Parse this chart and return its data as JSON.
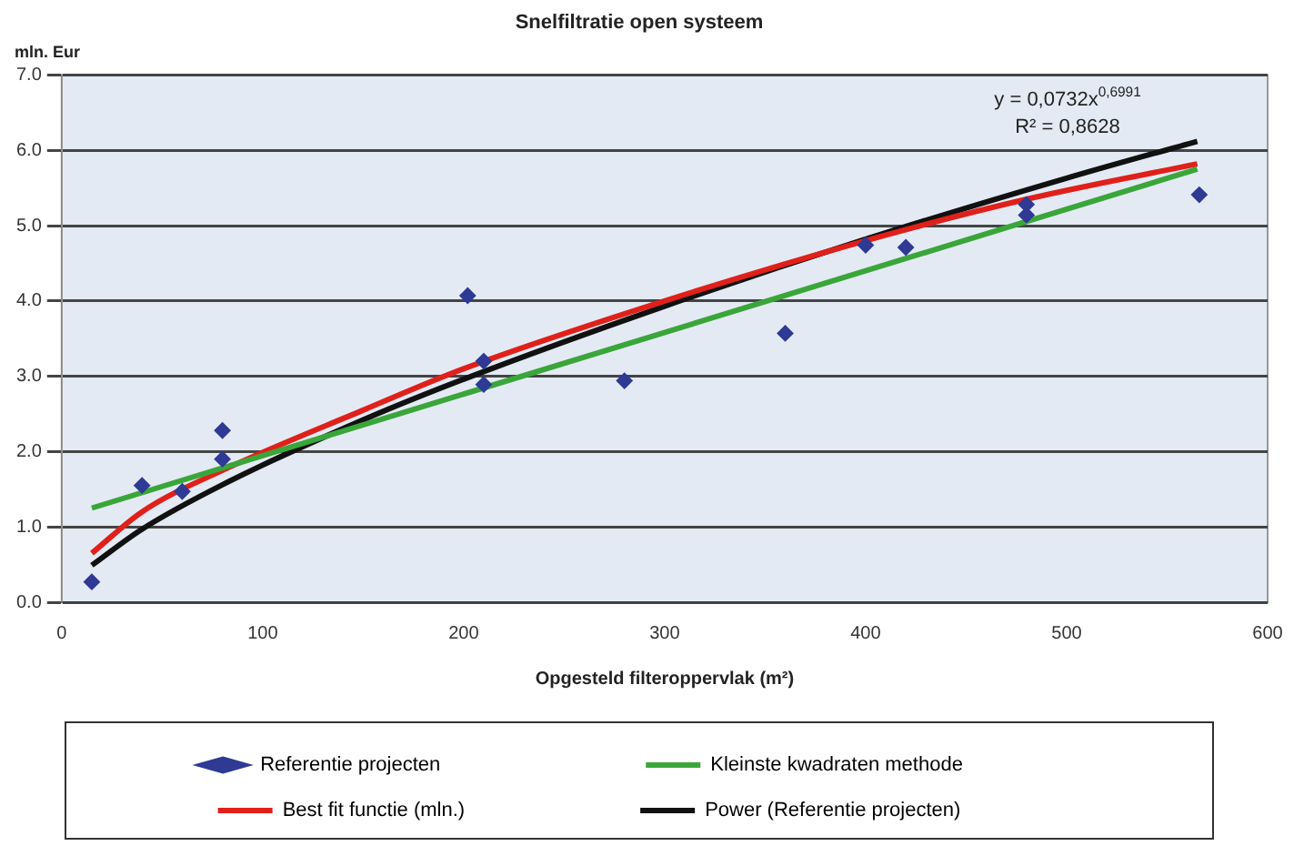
{
  "chart_data": {
    "type": "scatter",
    "title": "Snelfiltratie open systeem",
    "xlabel": "Opgesteld filteroppervlak (m²)",
    "ylabel": "mln. Eur",
    "xlim": [
      0,
      600
    ],
    "xticks": [
      0,
      100,
      200,
      300,
      400,
      500,
      600
    ],
    "ylim": [
      0,
      7
    ],
    "yticks": [
      {
        "value": 0,
        "label": "0.0"
      },
      {
        "value": 1,
        "label": "1.0"
      },
      {
        "value": 2,
        "label": "2.0"
      },
      {
        "value": 3,
        "label": "3.0"
      },
      {
        "value": 4,
        "label": "4.0"
      },
      {
        "value": 5,
        "label": "5.0"
      },
      {
        "value": 6,
        "label": "6.0"
      },
      {
        "value": 7,
        "label": "7.0"
      }
    ],
    "grid": "y",
    "legend": "bottom",
    "annotations": [
      "y = 0,0732x$^{0,6991}$",
      "R² = 0,8628"
    ],
    "series": [
      {
        "name": "Referentie projecten",
        "marker": "diamond",
        "color": "#2e3a94",
        "x": [
          15,
          40,
          60,
          80,
          80,
          202,
          210,
          210,
          280,
          360,
          400,
          420,
          480,
          480,
          566
        ],
        "values": [
          0.27,
          1.55,
          1.47,
          2.28,
          1.9,
          4.07,
          3.2,
          2.89,
          2.94,
          3.57,
          4.74,
          4.71,
          5.28,
          5.14,
          5.41
        ]
      },
      {
        "name": "Kleinste kwadraten methode",
        "type": "line",
        "marker": "none",
        "color": "#3aa63a",
        "x": [
          15,
          565
        ],
        "values": [
          1.25,
          5.75
        ]
      },
      {
        "name": "Best fit functie (mln.)",
        "type": "line",
        "marker": "none",
        "color": "#e0201a",
        "x": [
          15,
          40,
          80,
          150,
          200,
          300,
          400,
          480,
          565
        ],
        "values": [
          0.65,
          1.2,
          1.75,
          2.55,
          3.1,
          4.0,
          4.8,
          5.35,
          5.82
        ]
      },
      {
        "name": "Power (Referentie projecten)",
        "type": "line",
        "marker": "none",
        "color": "#111111",
        "x": [
          15,
          40,
          80,
          150,
          200,
          300,
          400,
          500,
          565
        ],
        "values": [
          0.49,
          0.97,
          1.56,
          2.42,
          2.96,
          3.93,
          4.82,
          5.63,
          6.12
        ]
      }
    ]
  }
}
